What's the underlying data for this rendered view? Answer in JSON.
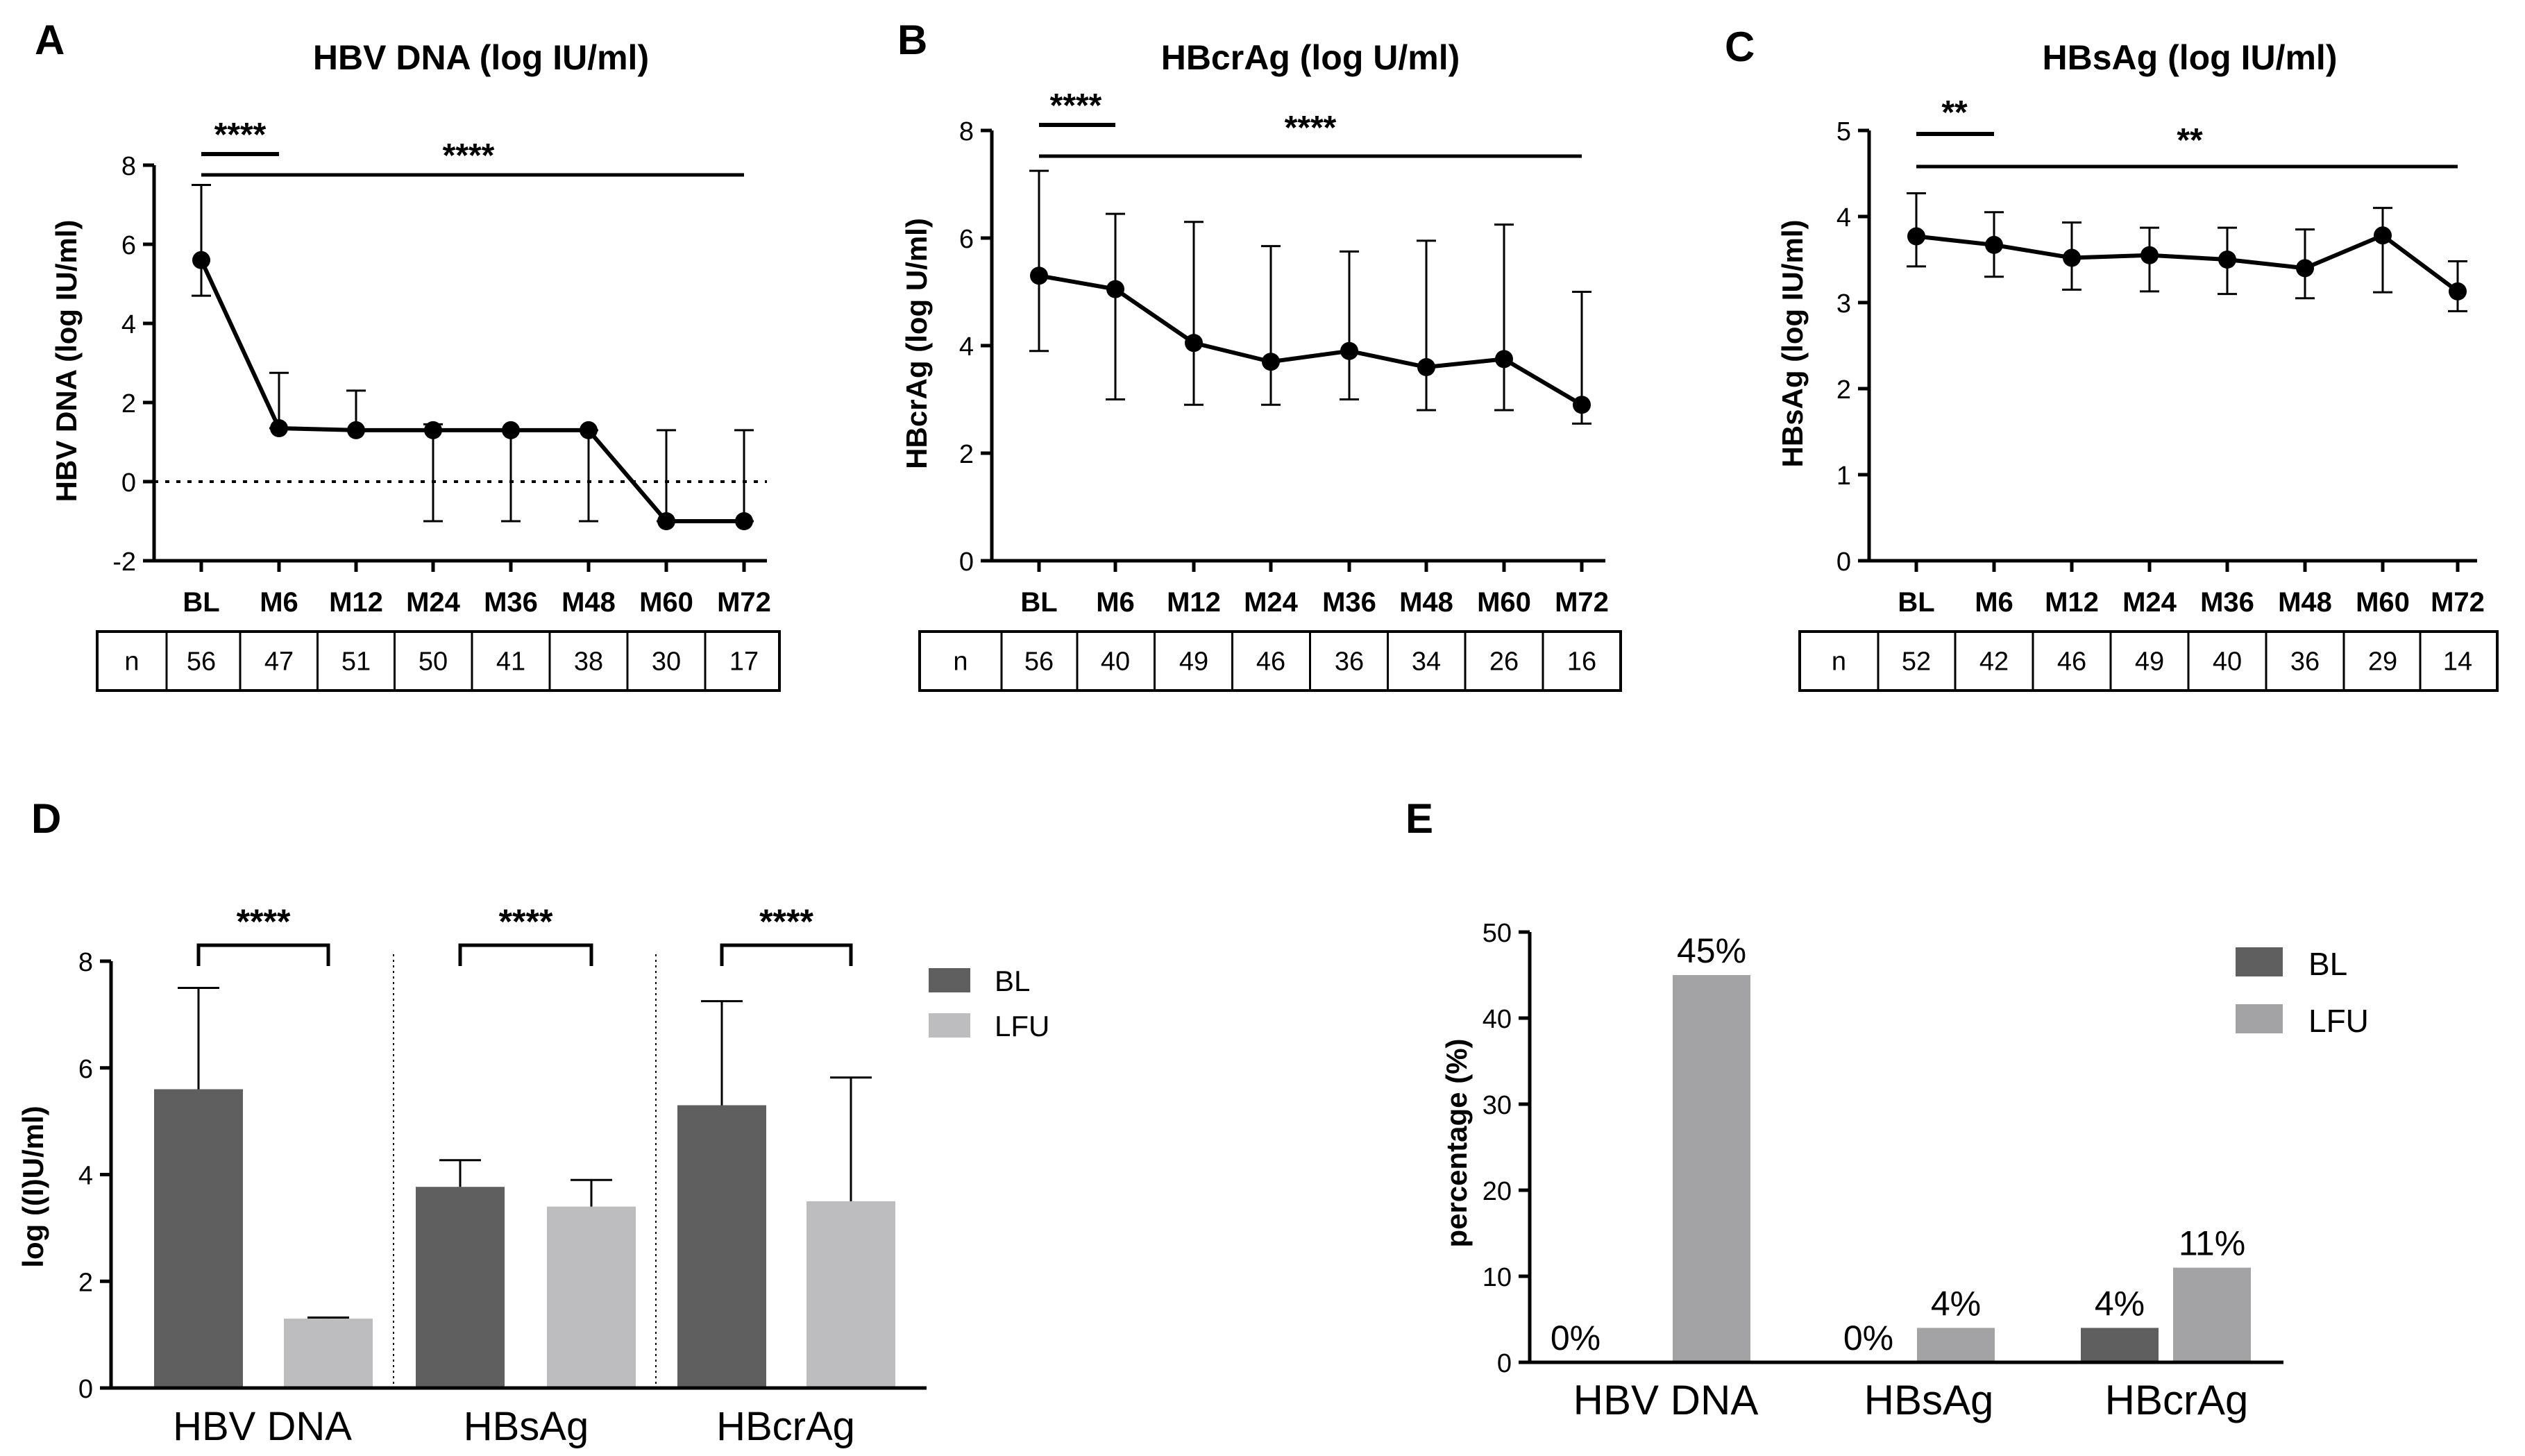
{
  "chart_data": [
    {
      "panel": "A",
      "type": "line",
      "title": "HBV DNA (log IU/ml)",
      "ylabel": "HBV  DNA (log IU/ml)",
      "xlabel": "",
      "ylim": [
        -2,
        8
      ],
      "yticks": [
        -2,
        0,
        2,
        4,
        6,
        8
      ],
      "categories": [
        "BL",
        "M6",
        "M12",
        "M24",
        "M36",
        "M48",
        "M60",
        "M72"
      ],
      "values": [
        5.6,
        1.35,
        1.3,
        1.3,
        1.3,
        1.3,
        -1.0,
        -1.0
      ],
      "error_upper": [
        7.5,
        2.75,
        2.3,
        1.45,
        1.3,
        1.3,
        1.3,
        1.3
      ],
      "error_lower": [
        4.7,
        1.35,
        1.3,
        -1.0,
        -1.0,
        -1.0,
        -1.0,
        -1.0
      ],
      "reference_line": 0,
      "n_label": "n",
      "n": [
        "56",
        "47",
        "51",
        "50",
        "41",
        "38",
        "30",
        "17"
      ],
      "significance": [
        {
          "from": 0,
          "to": 1,
          "label": "****"
        },
        {
          "from": 0,
          "to": 7,
          "label": "****"
        }
      ]
    },
    {
      "panel": "B",
      "type": "line",
      "title": "HBcrAg (log U/ml)",
      "ylabel": "HBcrAg (log U/ml)",
      "xlabel": "",
      "ylim": [
        0,
        8
      ],
      "yticks": [
        0,
        2,
        4,
        6,
        8
      ],
      "categories": [
        "BL",
        "M6",
        "M12",
        "M24",
        "M36",
        "M48",
        "M60",
        "M72"
      ],
      "values": [
        5.3,
        5.05,
        4.05,
        3.7,
        3.9,
        3.6,
        3.75,
        2.9
      ],
      "error_upper": [
        7.25,
        6.45,
        6.3,
        5.85,
        5.75,
        5.95,
        6.25,
        5.0
      ],
      "error_lower": [
        3.9,
        3.0,
        2.9,
        2.9,
        3.0,
        2.8,
        2.8,
        2.55
      ],
      "n_label": "n",
      "n": [
        "56",
        "40",
        "49",
        "46",
        "36",
        "34",
        "26",
        "16"
      ],
      "significance": [
        {
          "from": 0,
          "to": 1,
          "label": "****"
        },
        {
          "from": 0,
          "to": 7,
          "label": "****"
        }
      ]
    },
    {
      "panel": "C",
      "type": "line",
      "title": "HBsAg (log IU/ml)",
      "ylabel": "HBsAg (log IU/ml)",
      "xlabel": "",
      "ylim": [
        0,
        5
      ],
      "yticks": [
        0,
        1,
        2,
        3,
        4,
        5
      ],
      "categories": [
        "BL",
        "M6",
        "M12",
        "M24",
        "M36",
        "M48",
        "M60",
        "M72"
      ],
      "values": [
        3.77,
        3.67,
        3.52,
        3.55,
        3.5,
        3.4,
        3.78,
        3.13
      ],
      "error_upper": [
        4.27,
        4.05,
        3.93,
        3.87,
        3.87,
        3.85,
        4.1,
        3.48
      ],
      "error_lower": [
        3.42,
        3.3,
        3.15,
        3.13,
        3.1,
        3.05,
        3.12,
        2.9
      ],
      "n_label": "n",
      "n": [
        "52",
        "42",
        "46",
        "49",
        "40",
        "36",
        "29",
        "14"
      ],
      "significance": [
        {
          "from": 0,
          "to": 1,
          "label": "**"
        },
        {
          "from": 0,
          "to": 7,
          "label": "**"
        }
      ]
    },
    {
      "panel": "D",
      "type": "bar",
      "title": "",
      "ylabel": "log ((I)U/ml)",
      "xlabel": "",
      "ylim": [
        0,
        8
      ],
      "yticks": [
        0,
        2,
        4,
        6,
        8
      ],
      "categories": [
        "HBV DNA",
        "HBsAg",
        "HBcrAg"
      ],
      "series": [
        {
          "name": "BL",
          "color": "#5f5f5f",
          "values": [
            5.6,
            3.77,
            5.3
          ],
          "error_upper": [
            7.5,
            4.27,
            7.25
          ]
        },
        {
          "name": "LFU",
          "color": "#bdbdbf",
          "values": [
            1.3,
            3.4,
            3.5
          ],
          "error_upper": [
            1.32,
            3.9,
            5.82
          ]
        }
      ],
      "significance": [
        "****",
        "****",
        "****"
      ],
      "legend_position": "top-right"
    },
    {
      "panel": "E",
      "type": "bar",
      "title": "",
      "ylabel": "percentage (%)",
      "xlabel": "",
      "ylim": [
        0,
        50
      ],
      "yticks": [
        0,
        10,
        20,
        30,
        40,
        50
      ],
      "categories": [
        "HBV DNA",
        "HBsAg",
        "HBcrAg"
      ],
      "series": [
        {
          "name": "BL",
          "color": "#5f5f5f",
          "values": [
            0,
            0,
            4
          ],
          "labels": [
            "0%",
            "0%",
            "4%"
          ]
        },
        {
          "name": "LFU",
          "color": "#a3a3a6",
          "values": [
            45,
            4,
            11
          ],
          "labels": [
            "45%",
            "4%",
            "11%"
          ]
        }
      ],
      "legend_position": "top-right"
    }
  ]
}
